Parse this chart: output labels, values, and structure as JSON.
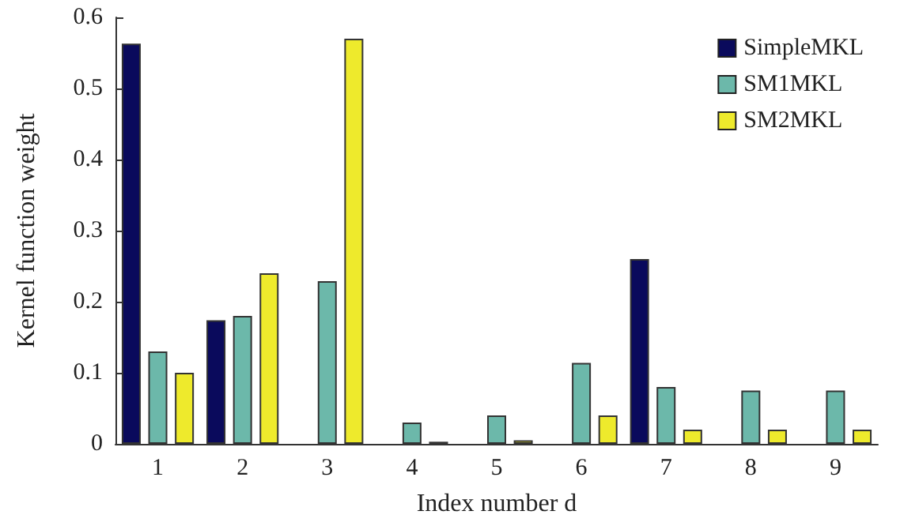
{
  "chart_data": {
    "type": "bar",
    "xlabel": "Index number d",
    "ylabel": "Kernel function weight",
    "categories": [
      "1",
      "2",
      "3",
      "4",
      "5",
      "6",
      "7",
      "8",
      "9"
    ],
    "series": [
      {
        "name": "SimpleMKL",
        "color": "#0a0a5c",
        "values": [
          0.563,
          0.174,
          null,
          null,
          null,
          null,
          0.26,
          null,
          null
        ]
      },
      {
        "name": "SM1MKL",
        "color": "#6cb8aa",
        "values": [
          0.13,
          0.18,
          0.229,
          0.03,
          0.04,
          0.114,
          0.08,
          0.075,
          0.075
        ]
      },
      {
        "name": "SM2MKL",
        "color": "#eeea2c",
        "values": [
          0.1,
          0.24,
          0.57,
          0.003,
          0.005,
          0.04,
          0.02,
          0.02,
          0.02
        ]
      }
    ],
    "ylim": [
      0,
      0.6
    ],
    "yticks": [
      0,
      0.1,
      0.2,
      0.3,
      0.4,
      0.5,
      0.6
    ],
    "grid": false,
    "legend": "top right"
  }
}
